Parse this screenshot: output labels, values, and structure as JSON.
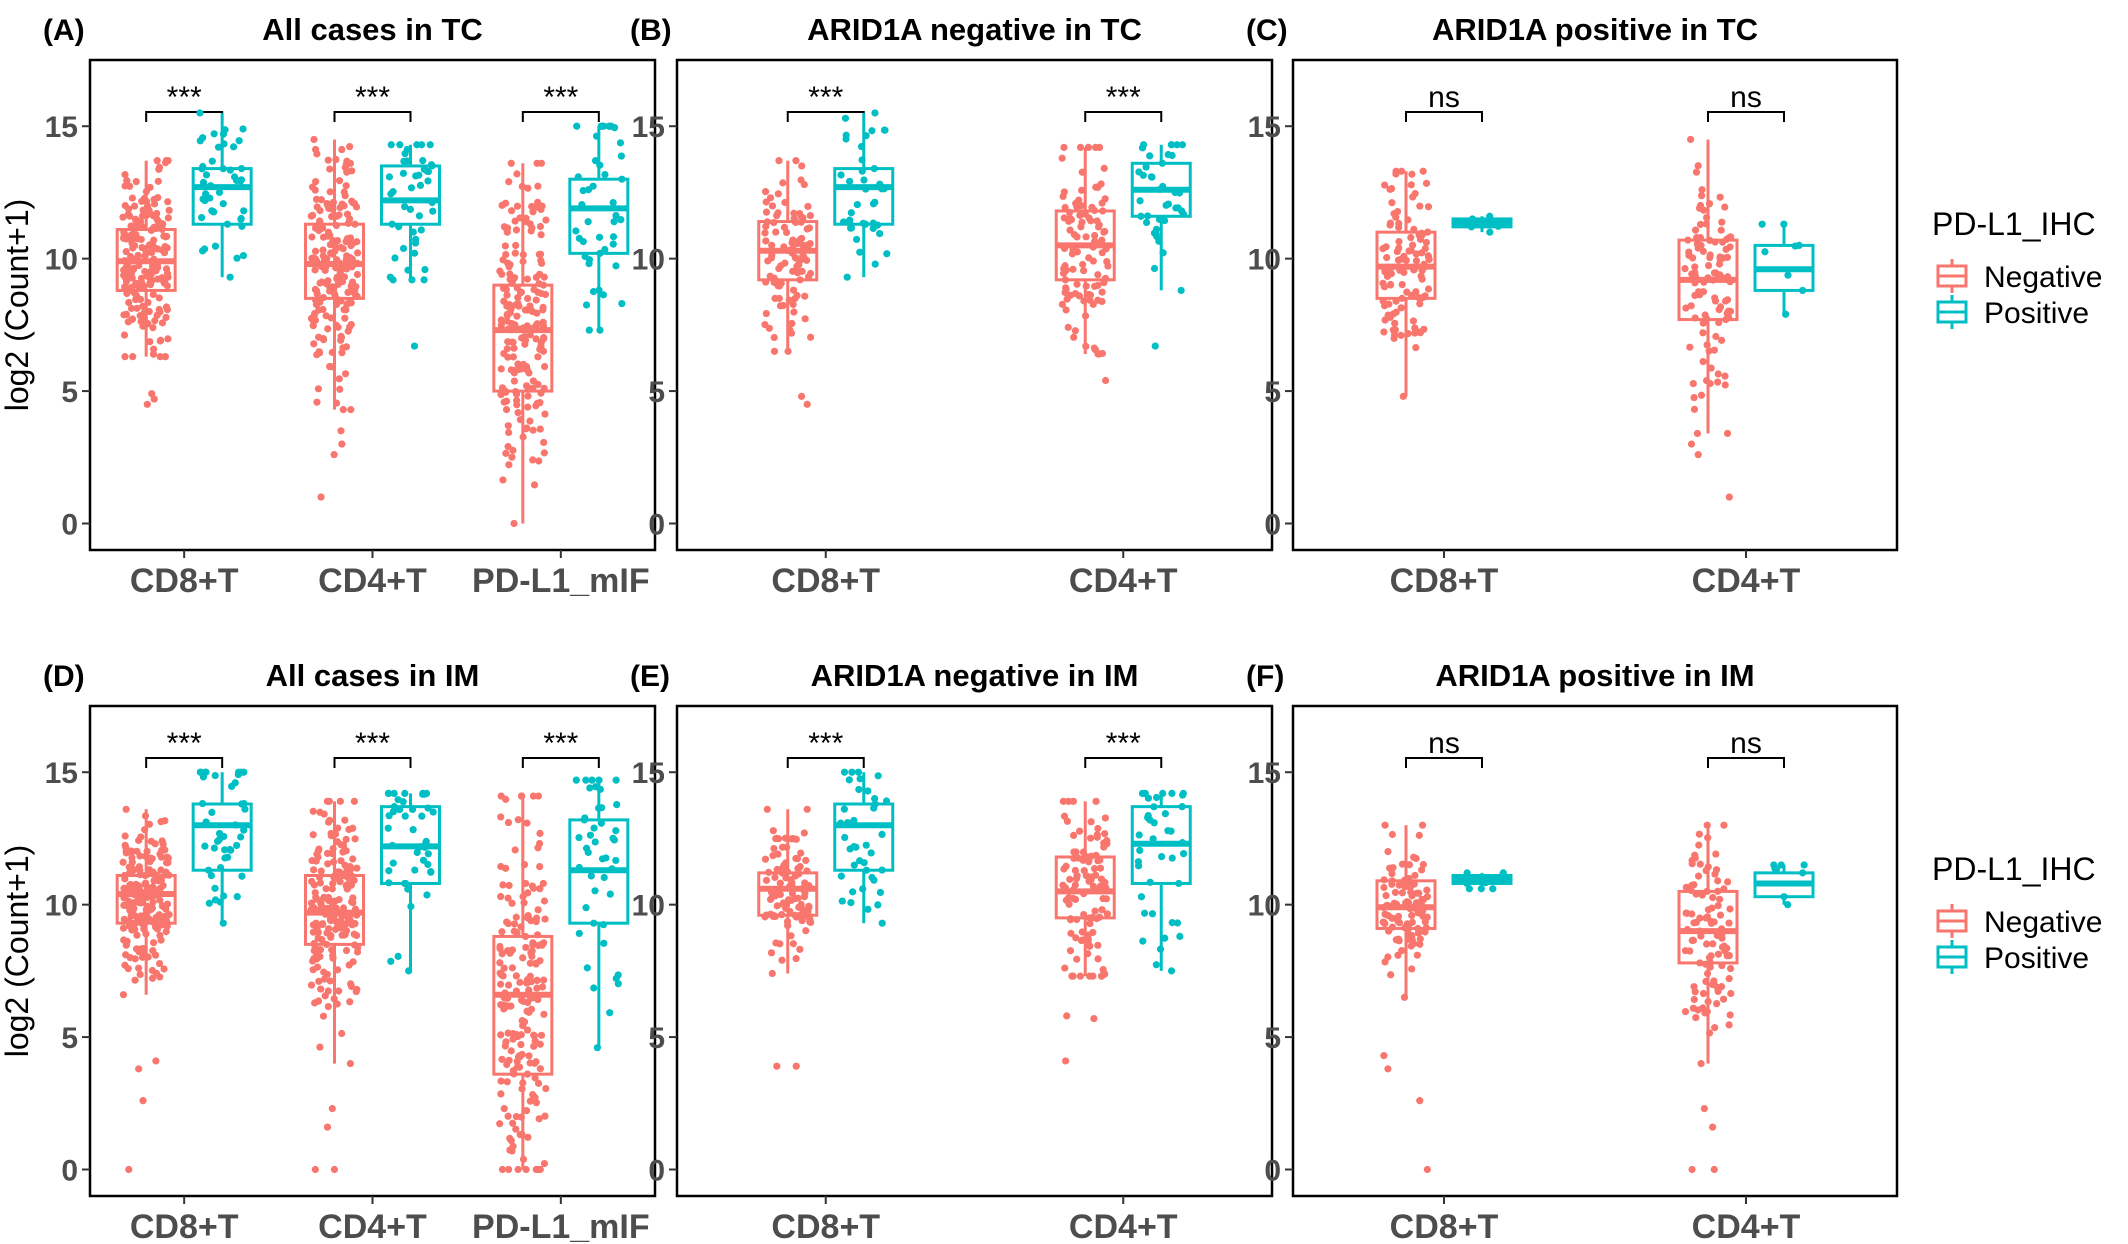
{
  "legend": {
    "title": "PD-L1_IHC",
    "items": [
      {
        "label": "Negative",
        "color": "#F8766D"
      },
      {
        "label": "Positive",
        "color": "#00BFC4"
      }
    ]
  },
  "chart_data": [
    {
      "type": "box",
      "letter": "(A)",
      "title": "All cases in TC",
      "ylabel": "log2 (Count+1)",
      "ylim": [
        -1,
        17.5
      ],
      "yticks": [
        0,
        5,
        10,
        15
      ],
      "categories": [
        "CD8+T",
        "CD4+T",
        "PD-L1_mIF"
      ],
      "significance": [
        "***",
        "***",
        "***"
      ],
      "series": [
        {
          "name": "Negative",
          "n": 190,
          "boxes": [
            {
              "min": 6.3,
              "q1": 8.8,
              "median": 9.9,
              "q3": 11.1,
              "max": 13.7,
              "outliers": [
                4.5,
                4.7,
                4.9
              ]
            },
            {
              "min": 4.3,
              "q1": 8.5,
              "median": 9.8,
              "q3": 11.3,
              "max": 14.5,
              "outliers": [
                1.0,
                2.6,
                3.0,
                3.5
              ]
            },
            {
              "min": 0.0,
              "q1": 5.0,
              "median": 7.3,
              "q3": 9.0,
              "max": 13.6,
              "outliers": []
            }
          ]
        },
        {
          "name": "Positive",
          "n": 40,
          "boxes": [
            {
              "min": 9.3,
              "q1": 11.3,
              "median": 12.7,
              "q3": 13.4,
              "max": 15.5,
              "outliers": []
            },
            {
              "min": 9.2,
              "q1": 11.3,
              "median": 12.2,
              "q3": 13.5,
              "max": 14.3,
              "outliers": [
                6.7
              ]
            },
            {
              "min": 7.3,
              "q1": 10.2,
              "median": 11.9,
              "q3": 13.0,
              "max": 15.0,
              "outliers": []
            }
          ]
        }
      ]
    },
    {
      "type": "box",
      "letter": "(B)",
      "title": "ARID1A negative in TC",
      "ylim": [
        -1,
        17.5
      ],
      "yticks": [
        0,
        5,
        10,
        15
      ],
      "categories": [
        "CD8+T",
        "CD4+T"
      ],
      "significance": [
        "***",
        "***"
      ],
      "series": [
        {
          "name": "Negative",
          "n": 100,
          "boxes": [
            {
              "min": 6.5,
              "q1": 9.2,
              "median": 10.3,
              "q3": 11.4,
              "max": 13.7,
              "outliers": [
                4.5,
                4.8
              ]
            },
            {
              "min": 6.4,
              "q1": 9.2,
              "median": 10.5,
              "q3": 11.8,
              "max": 14.2,
              "outliers": [
                5.4
              ]
            }
          ]
        },
        {
          "name": "Positive",
          "n": 35,
          "boxes": [
            {
              "min": 9.3,
              "q1": 11.3,
              "median": 12.7,
              "q3": 13.4,
              "max": 15.5,
              "outliers": []
            },
            {
              "min": 8.8,
              "q1": 11.6,
              "median": 12.6,
              "q3": 13.6,
              "max": 14.3,
              "outliers": [
                6.7
              ]
            }
          ]
        }
      ]
    },
    {
      "type": "box",
      "letter": "(C)",
      "title": "ARID1A positive in TC",
      "ylim": [
        -1,
        17.5
      ],
      "yticks": [
        0,
        5,
        10,
        15
      ],
      "categories": [
        "CD8+T",
        "CD4+T"
      ],
      "significance": [
        "ns",
        "ns"
      ],
      "series": [
        {
          "name": "Negative",
          "n": 100,
          "boxes": [
            {
              "min": 4.8,
              "q1": 8.5,
              "median": 9.7,
              "q3": 11.0,
              "max": 13.3,
              "outliers": []
            },
            {
              "min": 3.4,
              "q1": 7.7,
              "median": 9.2,
              "q3": 10.7,
              "max": 14.5,
              "outliers": [
                1.0,
                2.6,
                3.0
              ]
            }
          ]
        },
        {
          "name": "Positive",
          "n": 4,
          "boxes": [
            {
              "min": 11.0,
              "q1": 11.2,
              "median": 11.35,
              "q3": 11.5,
              "max": 11.6,
              "outliers": []
            },
            {
              "min": 7.9,
              "q1": 8.8,
              "median": 9.6,
              "q3": 10.5,
              "max": 11.3,
              "outliers": []
            }
          ]
        }
      ]
    },
    {
      "type": "box",
      "letter": "(D)",
      "title": "All cases in IM",
      "ylabel": "log2 (Count+1)",
      "ylim": [
        -1,
        17.5
      ],
      "yticks": [
        0,
        5,
        10,
        15
      ],
      "categories": [
        "CD8+T",
        "CD4+T",
        "PD-L1_mIF"
      ],
      "significance": [
        "***",
        "***",
        "***"
      ],
      "series": [
        {
          "name": "Negative",
          "n": 190,
          "boxes": [
            {
              "min": 6.6,
              "q1": 9.3,
              "median": 10.4,
              "q3": 11.1,
              "max": 13.6,
              "outliers": [
                0.0,
                2.6,
                3.8,
                4.1
              ]
            },
            {
              "min": 4.0,
              "q1": 8.5,
              "median": 9.7,
              "q3": 11.1,
              "max": 13.9,
              "outliers": [
                0.0,
                0.0,
                1.6,
                2.3
              ]
            },
            {
              "min": 0.0,
              "q1": 3.6,
              "median": 6.6,
              "q3": 8.8,
              "max": 14.1,
              "outliers": []
            }
          ]
        },
        {
          "name": "Positive",
          "n": 40,
          "boxes": [
            {
              "min": 9.3,
              "q1": 11.3,
              "median": 13.0,
              "q3": 13.8,
              "max": 15.0,
              "outliers": []
            },
            {
              "min": 7.5,
              "q1": 10.8,
              "median": 12.2,
              "q3": 13.7,
              "max": 14.2,
              "outliers": []
            },
            {
              "min": 4.6,
              "q1": 9.3,
              "median": 11.3,
              "q3": 13.2,
              "max": 14.7,
              "outliers": []
            }
          ]
        }
      ]
    },
    {
      "type": "box",
      "letter": "(E)",
      "title": "ARID1A negative in IM",
      "ylim": [
        -1,
        17.5
      ],
      "yticks": [
        0,
        5,
        10,
        15
      ],
      "categories": [
        "CD8+T",
        "CD4+T"
      ],
      "significance": [
        "***",
        "***"
      ],
      "series": [
        {
          "name": "Negative",
          "n": 100,
          "boxes": [
            {
              "min": 7.4,
              "q1": 9.6,
              "median": 10.6,
              "q3": 11.2,
              "max": 13.6,
              "outliers": [
                3.9,
                3.9
              ]
            },
            {
              "min": 7.3,
              "q1": 9.5,
              "median": 10.5,
              "q3": 11.8,
              "max": 13.9,
              "outliers": [
                4.1,
                5.7,
                5.8
              ]
            }
          ]
        },
        {
          "name": "Positive",
          "n": 35,
          "boxes": [
            {
              "min": 9.3,
              "q1": 11.3,
              "median": 13.0,
              "q3": 13.8,
              "max": 15.0,
              "outliers": []
            },
            {
              "min": 7.5,
              "q1": 10.8,
              "median": 12.3,
              "q3": 13.7,
              "max": 14.2,
              "outliers": []
            }
          ]
        }
      ]
    },
    {
      "type": "box",
      "letter": "(F)",
      "title": "ARID1A positive in IM",
      "ylim": [
        -1,
        17.5
      ],
      "yticks": [
        0,
        5,
        10,
        15
      ],
      "categories": [
        "CD8+T",
        "CD4+T"
      ],
      "significance": [
        "ns",
        "ns"
      ],
      "series": [
        {
          "name": "Negative",
          "n": 100,
          "boxes": [
            {
              "min": 6.5,
              "q1": 9.1,
              "median": 9.9,
              "q3": 10.9,
              "max": 13.0,
              "outliers": [
                0.0,
                2.6,
                3.8,
                4.3
              ]
            },
            {
              "min": 4.0,
              "q1": 7.8,
              "median": 9.0,
              "q3": 10.5,
              "max": 13.0,
              "outliers": [
                0.0,
                0.0,
                1.6,
                2.3
              ]
            }
          ]
        },
        {
          "name": "Positive",
          "n": 4,
          "boxes": [
            {
              "min": 10.6,
              "q1": 10.8,
              "median": 10.95,
              "q3": 11.1,
              "max": 11.2,
              "outliers": []
            },
            {
              "min": 10.0,
              "q1": 10.3,
              "median": 10.8,
              "q3": 11.2,
              "max": 11.5,
              "outliers": []
            }
          ]
        }
      ]
    }
  ]
}
